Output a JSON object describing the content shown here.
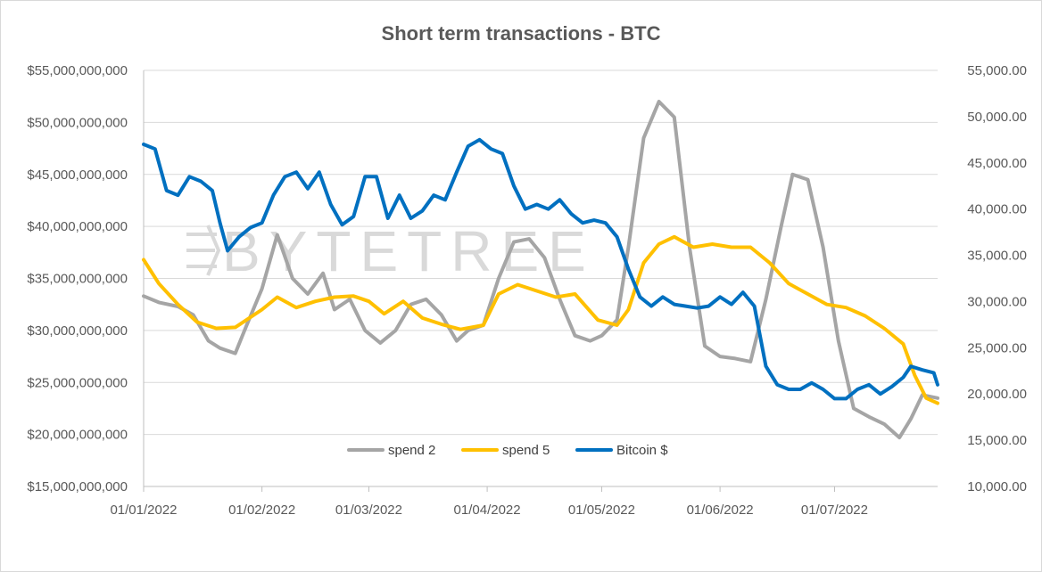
{
  "chart_data": {
    "type": "line",
    "title": "Short term transactions - BTC",
    "watermark": "BYTETREE",
    "x_ticks": [
      "01/01/2022",
      "01/02/2022",
      "01/03/2022",
      "01/04/2022",
      "01/05/2022",
      "01/06/2022",
      "01/07/2022"
    ],
    "x_range": [
      "01/01/2022",
      "28/07/2022"
    ],
    "y_left": {
      "min": 15000000000,
      "max": 55000000000,
      "step": 5000000000,
      "tick_labels": [
        "$15,000,000,000",
        "$20,000,000,000",
        "$25,000,000,000",
        "$30,000,000,000",
        "$35,000,000,000",
        "$40,000,000,000",
        "$45,000,000,000",
        "$50,000,000,000",
        "$55,000,000,000"
      ]
    },
    "y_right": {
      "min": 10000,
      "max": 55000,
      "step": 5000,
      "tick_labels": [
        "10,000.00",
        "15,000.00",
        "20,000.00",
        "25,000.00",
        "30,000.00",
        "35,000.00",
        "40,000.00",
        "45,000.00",
        "50,000.00",
        "55,000.00"
      ]
    },
    "gridlines": true,
    "legend_position": "bottom-center",
    "series": [
      {
        "name": "spend 2",
        "axis": "left",
        "color": "#a5a5a5",
        "points": [
          [
            "01/01/2022",
            33300000000
          ],
          [
            "05/01/2022",
            32700000000
          ],
          [
            "10/01/2022",
            32300000000
          ],
          [
            "14/01/2022",
            31500000000
          ],
          [
            "18/01/2022",
            29000000000
          ],
          [
            "21/01/2022",
            28300000000
          ],
          [
            "25/01/2022",
            27800000000
          ],
          [
            "28/01/2022",
            30500000000
          ],
          [
            "01/02/2022",
            34000000000
          ],
          [
            "05/02/2022",
            39200000000
          ],
          [
            "09/02/2022",
            35000000000
          ],
          [
            "13/02/2022",
            33500000000
          ],
          [
            "17/02/2022",
            35500000000
          ],
          [
            "20/02/2022",
            32000000000
          ],
          [
            "24/02/2022",
            33000000000
          ],
          [
            "28/02/2022",
            30000000000
          ],
          [
            "04/03/2022",
            28800000000
          ],
          [
            "08/03/2022",
            30000000000
          ],
          [
            "12/03/2022",
            32500000000
          ],
          [
            "16/03/2022",
            33000000000
          ],
          [
            "20/03/2022",
            31500000000
          ],
          [
            "24/03/2022",
            29000000000
          ],
          [
            "27/03/2022",
            30000000000
          ],
          [
            "31/03/2022",
            30500000000
          ],
          [
            "04/04/2022",
            35000000000
          ],
          [
            "08/04/2022",
            38500000000
          ],
          [
            "12/04/2022",
            38800000000
          ],
          [
            "16/04/2022",
            37000000000
          ],
          [
            "20/04/2022",
            33000000000
          ],
          [
            "24/04/2022",
            29500000000
          ],
          [
            "28/04/2022",
            29000000000
          ],
          [
            "01/05/2022",
            29500000000
          ],
          [
            "05/05/2022",
            31000000000
          ],
          [
            "08/05/2022",
            38000000000
          ],
          [
            "12/05/2022",
            48500000000
          ],
          [
            "16/05/2022",
            52000000000
          ],
          [
            "20/05/2022",
            50500000000
          ],
          [
            "24/05/2022",
            38000000000
          ],
          [
            "28/05/2022",
            28500000000
          ],
          [
            "01/06/2022",
            27500000000
          ],
          [
            "05/06/2022",
            27300000000
          ],
          [
            "09/06/2022",
            27000000000
          ],
          [
            "13/06/2022",
            33000000000
          ],
          [
            "17/06/2022",
            40000000000
          ],
          [
            "20/06/2022",
            45000000000
          ],
          [
            "24/06/2022",
            44500000000
          ],
          [
            "28/06/2022",
            38000000000
          ],
          [
            "02/07/2022",
            29000000000
          ],
          [
            "06/07/2022",
            22500000000
          ],
          [
            "10/07/2022",
            21700000000
          ],
          [
            "14/07/2022",
            21000000000
          ],
          [
            "18/07/2022",
            19700000000
          ],
          [
            "21/07/2022",
            21500000000
          ],
          [
            "24/07/2022",
            23800000000
          ],
          [
            "28/07/2022",
            23500000000
          ]
        ]
      },
      {
        "name": "spend 5",
        "axis": "left",
        "color": "#ffc000",
        "points": [
          [
            "01/01/2022",
            36800000000
          ],
          [
            "05/01/2022",
            34500000000
          ],
          [
            "10/01/2022",
            32500000000
          ],
          [
            "15/01/2022",
            30800000000
          ],
          [
            "20/01/2022",
            30200000000
          ],
          [
            "25/01/2022",
            30300000000
          ],
          [
            "01/02/2022",
            32000000000
          ],
          [
            "05/02/2022",
            33200000000
          ],
          [
            "10/02/2022",
            32200000000
          ],
          [
            "15/02/2022",
            32800000000
          ],
          [
            "20/02/2022",
            33200000000
          ],
          [
            "25/02/2022",
            33300000000
          ],
          [
            "01/03/2022",
            32800000000
          ],
          [
            "05/03/2022",
            31600000000
          ],
          [
            "10/03/2022",
            32800000000
          ],
          [
            "15/03/2022",
            31200000000
          ],
          [
            "20/03/2022",
            30600000000
          ],
          [
            "25/03/2022",
            30100000000
          ],
          [
            "31/03/2022",
            30500000000
          ],
          [
            "04/04/2022",
            33500000000
          ],
          [
            "09/04/2022",
            34400000000
          ],
          [
            "14/04/2022",
            33800000000
          ],
          [
            "19/04/2022",
            33200000000
          ],
          [
            "24/04/2022",
            33500000000
          ],
          [
            "30/04/2022",
            31000000000
          ],
          [
            "05/05/2022",
            30500000000
          ],
          [
            "08/05/2022",
            32000000000
          ],
          [
            "12/05/2022",
            36500000000
          ],
          [
            "16/05/2022",
            38300000000
          ],
          [
            "20/05/2022",
            39000000000
          ],
          [
            "25/05/2022",
            38000000000
          ],
          [
            "30/05/2022",
            38300000000
          ],
          [
            "04/06/2022",
            38000000000
          ],
          [
            "09/06/2022",
            38000000000
          ],
          [
            "14/06/2022",
            36500000000
          ],
          [
            "19/06/2022",
            34500000000
          ],
          [
            "24/06/2022",
            33500000000
          ],
          [
            "29/06/2022",
            32500000000
          ],
          [
            "04/07/2022",
            32200000000
          ],
          [
            "09/07/2022",
            31400000000
          ],
          [
            "14/07/2022",
            30200000000
          ],
          [
            "19/07/2022",
            28700000000
          ],
          [
            "22/07/2022",
            25700000000
          ],
          [
            "25/07/2022",
            23500000000
          ],
          [
            "28/07/2022",
            23000000000
          ]
        ]
      },
      {
        "name": "Bitcoin $",
        "axis": "right",
        "color": "#0070c0",
        "points": [
          [
            "01/01/2022",
            47000
          ],
          [
            "04/01/2022",
            46500
          ],
          [
            "07/01/2022",
            42000
          ],
          [
            "10/01/2022",
            41500
          ],
          [
            "13/01/2022",
            43500
          ],
          [
            "16/01/2022",
            43000
          ],
          [
            "19/01/2022",
            42000
          ],
          [
            "21/01/2022",
            38500
          ],
          [
            "23/01/2022",
            35500
          ],
          [
            "26/01/2022",
            37000
          ],
          [
            "29/01/2022",
            38000
          ],
          [
            "01/02/2022",
            38500
          ],
          [
            "04/02/2022",
            41500
          ],
          [
            "07/02/2022",
            43500
          ],
          [
            "10/02/2022",
            44000
          ],
          [
            "13/02/2022",
            42200
          ],
          [
            "16/02/2022",
            44000
          ],
          [
            "19/02/2022",
            40500
          ],
          [
            "22/02/2022",
            38300
          ],
          [
            "25/02/2022",
            39200
          ],
          [
            "28/02/2022",
            43500
          ],
          [
            "03/03/2022",
            43500
          ],
          [
            "06/03/2022",
            39000
          ],
          [
            "09/03/2022",
            41500
          ],
          [
            "12/03/2022",
            39000
          ],
          [
            "15/03/2022",
            39800
          ],
          [
            "18/03/2022",
            41500
          ],
          [
            "21/03/2022",
            41000
          ],
          [
            "24/03/2022",
            44000
          ],
          [
            "27/03/2022",
            46800
          ],
          [
            "30/03/2022",
            47500
          ],
          [
            "02/04/2022",
            46500
          ],
          [
            "05/04/2022",
            46000
          ],
          [
            "08/04/2022",
            42500
          ],
          [
            "11/04/2022",
            40000
          ],
          [
            "14/04/2022",
            40500
          ],
          [
            "17/04/2022",
            40000
          ],
          [
            "20/04/2022",
            41000
          ],
          [
            "23/04/2022",
            39500
          ],
          [
            "26/04/2022",
            38500
          ],
          [
            "29/04/2022",
            38800
          ],
          [
            "02/05/2022",
            38500
          ],
          [
            "05/05/2022",
            37000
          ],
          [
            "08/05/2022",
            33500
          ],
          [
            "11/05/2022",
            30500
          ],
          [
            "14/05/2022",
            29500
          ],
          [
            "17/05/2022",
            30500
          ],
          [
            "20/05/2022",
            29700
          ],
          [
            "23/05/2022",
            29500
          ],
          [
            "26/05/2022",
            29300
          ],
          [
            "29/05/2022",
            29500
          ],
          [
            "01/06/2022",
            30500
          ],
          [
            "04/06/2022",
            29700
          ],
          [
            "07/06/2022",
            31000
          ],
          [
            "10/06/2022",
            29500
          ],
          [
            "13/06/2022",
            23000
          ],
          [
            "16/06/2022",
            21000
          ],
          [
            "19/06/2022",
            20500
          ],
          [
            "22/06/2022",
            20500
          ],
          [
            "25/06/2022",
            21200
          ],
          [
            "28/06/2022",
            20500
          ],
          [
            "01/07/2022",
            19500
          ],
          [
            "04/07/2022",
            19500
          ],
          [
            "07/07/2022",
            20500
          ],
          [
            "10/07/2022",
            21000
          ],
          [
            "13/07/2022",
            20000
          ],
          [
            "16/07/2022",
            20800
          ],
          [
            "19/07/2022",
            21800
          ],
          [
            "21/07/2022",
            23000
          ],
          [
            "24/07/2022",
            22600
          ],
          [
            "27/07/2022",
            22300
          ],
          [
            "28/07/2022",
            21000
          ]
        ]
      }
    ]
  }
}
